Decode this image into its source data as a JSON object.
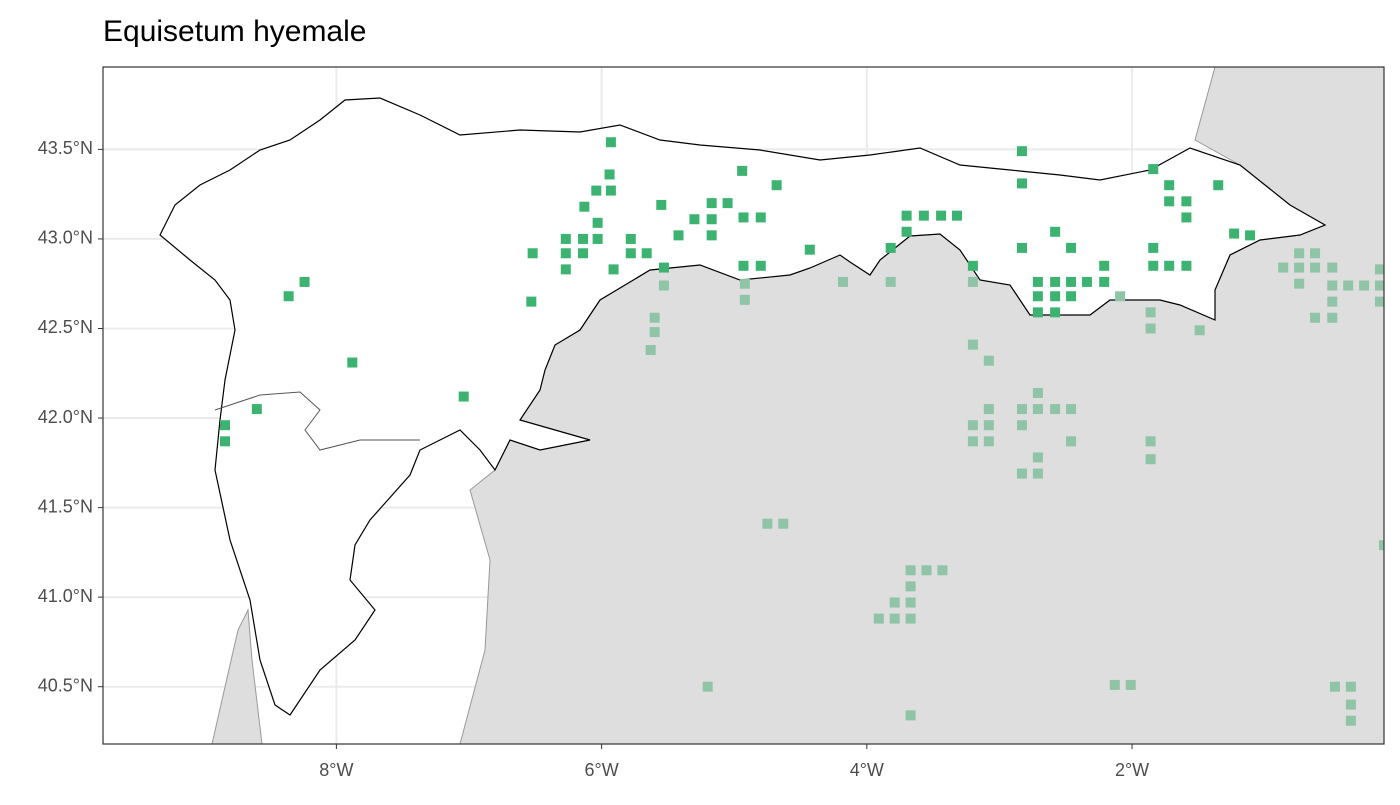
{
  "chart_data": {
    "type": "scatter",
    "title": "Equisetum hyemale",
    "xlim": [
      -9.76,
      -0.1
    ],
    "ylim": [
      40.18,
      43.96
    ],
    "xticks": [
      {
        "value": -8,
        "label": "8°W"
      },
      {
        "value": -6,
        "label": "6°W"
      },
      {
        "value": -4,
        "label": "4°W"
      },
      {
        "value": -2,
        "label": "2°W"
      }
    ],
    "yticks": [
      {
        "value": 40.5,
        "label": "40.5°N"
      },
      {
        "value": 41,
        "label": "41.0°N"
      },
      {
        "value": 41.5,
        "label": "41.5°N"
      },
      {
        "value": 42,
        "label": "42.0°N"
      },
      {
        "value": 42.5,
        "label": "42.5°N"
      },
      {
        "value": 43,
        "label": "43.0°N"
      },
      {
        "value": 43.5,
        "label": "43.5°N"
      }
    ],
    "grid": true,
    "series": [
      {
        "color": "#3cb371",
        "x": [
          -5.93,
          -2.83,
          -5.94,
          -6.04,
          -5.93,
          -4.94,
          -4.68,
          -6.13,
          -5.55,
          -5.17,
          -5.05,
          -6.03,
          -5.3,
          -5.17,
          -4.93,
          -4.8,
          -6.27,
          -6.14,
          -6.03,
          -5.78,
          -5.42,
          -5.17,
          -6.52,
          -6.27,
          -6.14,
          -5.78,
          -5.66,
          -6.27,
          -5.91,
          -5.53,
          -4.93,
          -4.8,
          -4.43,
          -6.53,
          -8.24,
          -8.36,
          -7.88,
          -7.04,
          -8.6,
          -8.84,
          -8.84,
          -2.83,
          -1.35,
          -1.84,
          -1.72,
          -1.72,
          -1.59,
          -1.59,
          -3.7,
          -3.57,
          -3.44,
          -3.32,
          -3.7,
          -2.58,
          -3.82,
          -2.83,
          -2.46,
          -1.84,
          -1.23,
          -1.11,
          -3.2,
          -1.84,
          -1.72,
          -1.59,
          -2.21,
          -2.71,
          -2.58,
          -2.46,
          -2.34,
          -2.21,
          -2.71,
          -2.58,
          -2.46,
          -2.71,
          -2.58
        ],
        "values": [
          43.54,
          43.49,
          43.36,
          43.27,
          43.27,
          43.38,
          43.3,
          43.18,
          43.19,
          43.2,
          43.2,
          43.09,
          43.11,
          43.11,
          43.12,
          43.12,
          43.0,
          43.0,
          43.0,
          43.0,
          43.02,
          43.02,
          42.92,
          42.92,
          42.92,
          42.92,
          42.92,
          42.83,
          42.83,
          42.84,
          42.85,
          42.85,
          42.94,
          42.65,
          42.76,
          42.68,
          42.31,
          42.12,
          42.05,
          41.96,
          41.87,
          43.31,
          43.3,
          43.39,
          43.3,
          43.21,
          43.21,
          43.12,
          43.13,
          43.13,
          43.13,
          43.13,
          43.04,
          43.04,
          42.95,
          42.95,
          42.95,
          42.95,
          43.03,
          43.02,
          42.85,
          42.85,
          42.85,
          42.85,
          42.85,
          42.76,
          42.76,
          42.76,
          42.76,
          42.76,
          42.68,
          42.68,
          42.68,
          42.59,
          42.59
        ]
      },
      {
        "color": "#8fc4a6",
        "x": [
          -5.53,
          -4.92,
          -4.92,
          -4.18,
          -3.82,
          -3.2,
          -2.09,
          -5.6,
          -5.6,
          -5.63,
          -1.86,
          -1.86,
          -1.49,
          -3.2,
          -3.08,
          -0.86,
          -0.74,
          -0.62,
          -0.74,
          -0.62,
          -0.49,
          -0.74,
          -0.49,
          -0.37,
          -0.25,
          -0.13,
          -0.13,
          -0.49,
          -0.13,
          -0.62,
          -0.49,
          -2.71,
          -3.08,
          -3.2,
          -3.08,
          -3.2,
          -3.08,
          -2.83,
          -2.71,
          -2.58,
          -2.46,
          -2.83,
          -2.71,
          -2.83,
          -2.71,
          -2.46,
          -1.86,
          -1.86,
          -4.75,
          -4.63,
          -3.67,
          -3.55,
          -3.43,
          -3.67,
          -3.67,
          -3.79,
          -3.91,
          -3.79,
          -3.67,
          -5.2,
          -3.67,
          -2.13,
          -2.01,
          -0.47,
          -0.35,
          -0.35,
          -0.35,
          -0.1
        ],
        "values": [
          42.74,
          42.75,
          42.66,
          42.76,
          42.76,
          42.76,
          42.68,
          42.56,
          42.48,
          42.38,
          42.59,
          42.5,
          42.49,
          42.41,
          42.32,
          42.84,
          42.92,
          42.92,
          42.84,
          42.84,
          42.84,
          42.75,
          42.74,
          42.74,
          42.74,
          42.83,
          42.74,
          42.65,
          42.65,
          42.56,
          42.56,
          42.14,
          42.05,
          41.96,
          41.96,
          41.87,
          41.87,
          42.05,
          42.05,
          42.05,
          42.05,
          41.96,
          41.78,
          41.69,
          41.69,
          41.87,
          41.87,
          41.77,
          41.41,
          41.41,
          41.15,
          41.15,
          41.15,
          41.06,
          40.97,
          40.97,
          40.88,
          40.88,
          40.88,
          40.5,
          40.34,
          40.51,
          40.51,
          40.5,
          40.5,
          40.4,
          40.31,
          41.29
        ]
      }
    ]
  }
}
